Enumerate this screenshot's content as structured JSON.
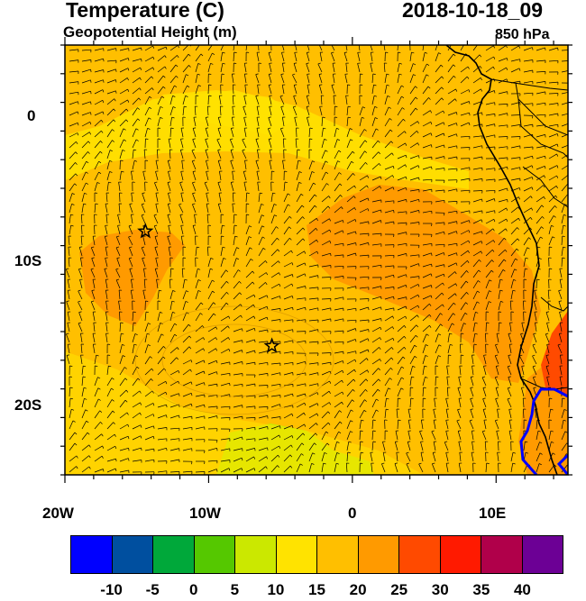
{
  "header": {
    "title": "Temperature (C)",
    "subtitle": "Geopotential Height (m)",
    "valid_time": "2018-10-18_09",
    "level": "850 hPa"
  },
  "map": {
    "domain_lon": [
      -20,
      15
    ],
    "domain_lat": [
      -25,
      5
    ],
    "x_ticks": [
      {
        "label": "20W",
        "lon": -20
      },
      {
        "label": "10W",
        "lon": -10
      },
      {
        "label": "0",
        "lon": 0
      },
      {
        "label": "10E",
        "lon": 10
      }
    ],
    "y_ticks": [
      {
        "label": "0",
        "lat": 0
      },
      {
        "label": "10S",
        "lat": -10
      },
      {
        "label": "20S",
        "lat": -20
      }
    ],
    "markers": [
      {
        "name": "star-marker",
        "lon": -14.4,
        "lat": -8
      },
      {
        "name": "star-marker",
        "lon": -5.6,
        "lat": -16
      }
    ],
    "fill_colors": {
      "base": "#ffbf00",
      "cool": "#ffe300",
      "warm": "#ff9a00",
      "hot": "#ff4a00",
      "very_hot": "#ff1a00",
      "green": "#cbe800",
      "boundary": "#0000ff"
    }
  },
  "colorbar": {
    "colors": [
      "#0000ff",
      "#004f9f",
      "#00a83a",
      "#55c800",
      "#cbe800",
      "#ffe300",
      "#ffbf00",
      "#ff9a00",
      "#ff4a00",
      "#ff1a00",
      "#b0004a",
      "#6c0095"
    ],
    "labels": [
      "-10",
      "-5",
      "0",
      "5",
      "10",
      "15",
      "20",
      "25",
      "30",
      "35",
      "40"
    ]
  }
}
